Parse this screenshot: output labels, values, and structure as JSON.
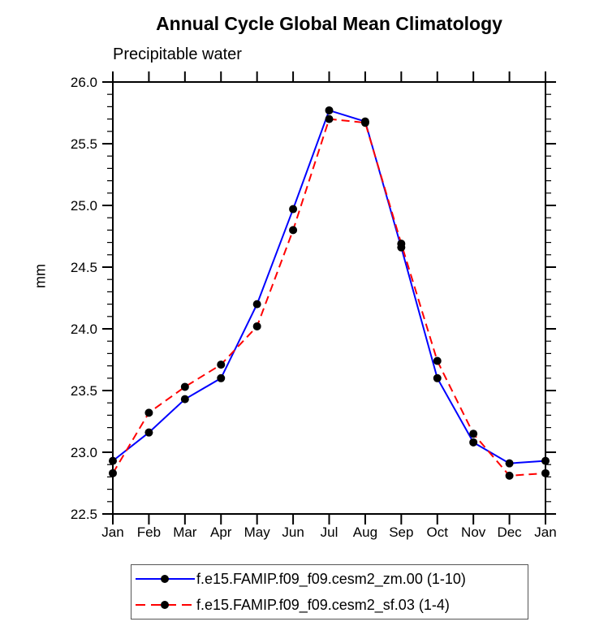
{
  "title": "Annual Cycle Global Mean Climatology",
  "subtitle": "Precipitable water",
  "chart_data": {
    "type": "line",
    "title": "Annual Cycle Global Mean Climatology",
    "subtitle": "Precipitable water",
    "xlabel": "",
    "ylabel": "mm",
    "categories": [
      "Jan",
      "Feb",
      "Mar",
      "Apr",
      "May",
      "Jun",
      "Jul",
      "Aug",
      "Sep",
      "Oct",
      "Nov",
      "Dec",
      "Jan"
    ],
    "series": [
      {
        "name": "f.e15.FAMIP.f09_f09.cesm2_zm.00 (1-10)",
        "color": "#0000ff",
        "style": "solid",
        "marker": "circle",
        "marker_color": "#000000",
        "values": [
          22.93,
          23.16,
          23.43,
          23.6,
          24.2,
          24.97,
          25.77,
          25.68,
          24.66,
          23.6,
          23.08,
          22.91,
          22.93
        ]
      },
      {
        "name": "f.e15.FAMIP.f09_f09.cesm2_sf.03 (1-4)",
        "color": "#ff0000",
        "style": "dashed",
        "marker": "circle",
        "marker_color": "#000000",
        "values": [
          22.83,
          23.32,
          23.53,
          23.71,
          24.02,
          24.8,
          25.7,
          25.67,
          24.69,
          23.74,
          23.15,
          22.81,
          22.83
        ]
      }
    ],
    "ylim": [
      22.5,
      26.0
    ],
    "yticks": [
      22.5,
      23.0,
      23.5,
      24.0,
      24.5,
      25.0,
      25.5,
      26.0
    ],
    "ytick_labels": [
      "22.5",
      "23.0",
      "23.5",
      "24.0",
      "24.5",
      "25.0",
      "25.5",
      "26.0"
    ],
    "yminor_step": 0.1,
    "grid": false,
    "legend_position": "bottom"
  },
  "colors": {
    "axis": "#000000",
    "legend_border": "#555555",
    "background": "#ffffff"
  }
}
